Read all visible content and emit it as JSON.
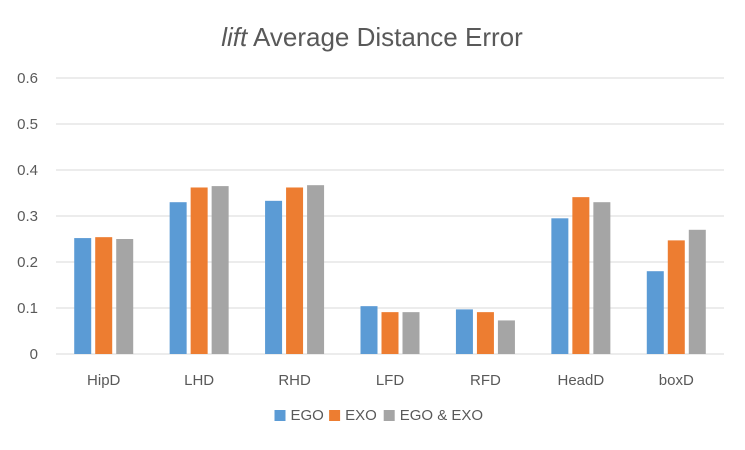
{
  "chart_data": {
    "type": "bar",
    "title_italic": "lift",
    "title_rest": " Average Distance Error",
    "categories": [
      "HipD",
      "LHD",
      "RHD",
      "LFD",
      "RFD",
      "HeadD",
      "boxD"
    ],
    "series": [
      {
        "name": "EGO",
        "color": "#5b9bd5",
        "values": [
          0.252,
          0.33,
          0.333,
          0.104,
          0.097,
          0.295,
          0.18
        ]
      },
      {
        "name": "EXO",
        "color": "#ed7d31",
        "values": [
          0.254,
          0.362,
          0.362,
          0.091,
          0.091,
          0.341,
          0.247
        ]
      },
      {
        "name": "EGO & EXO",
        "color": "#a5a5a5",
        "values": [
          0.25,
          0.365,
          0.367,
          0.091,
          0.073,
          0.33,
          0.27
        ]
      }
    ],
    "ylim": [
      0,
      0.6
    ],
    "yticks": [
      "0",
      "0.1",
      "0.2",
      "0.3",
      "0.4",
      "0.5",
      "0.6"
    ],
    "grid": true,
    "legend": "bottom"
  }
}
